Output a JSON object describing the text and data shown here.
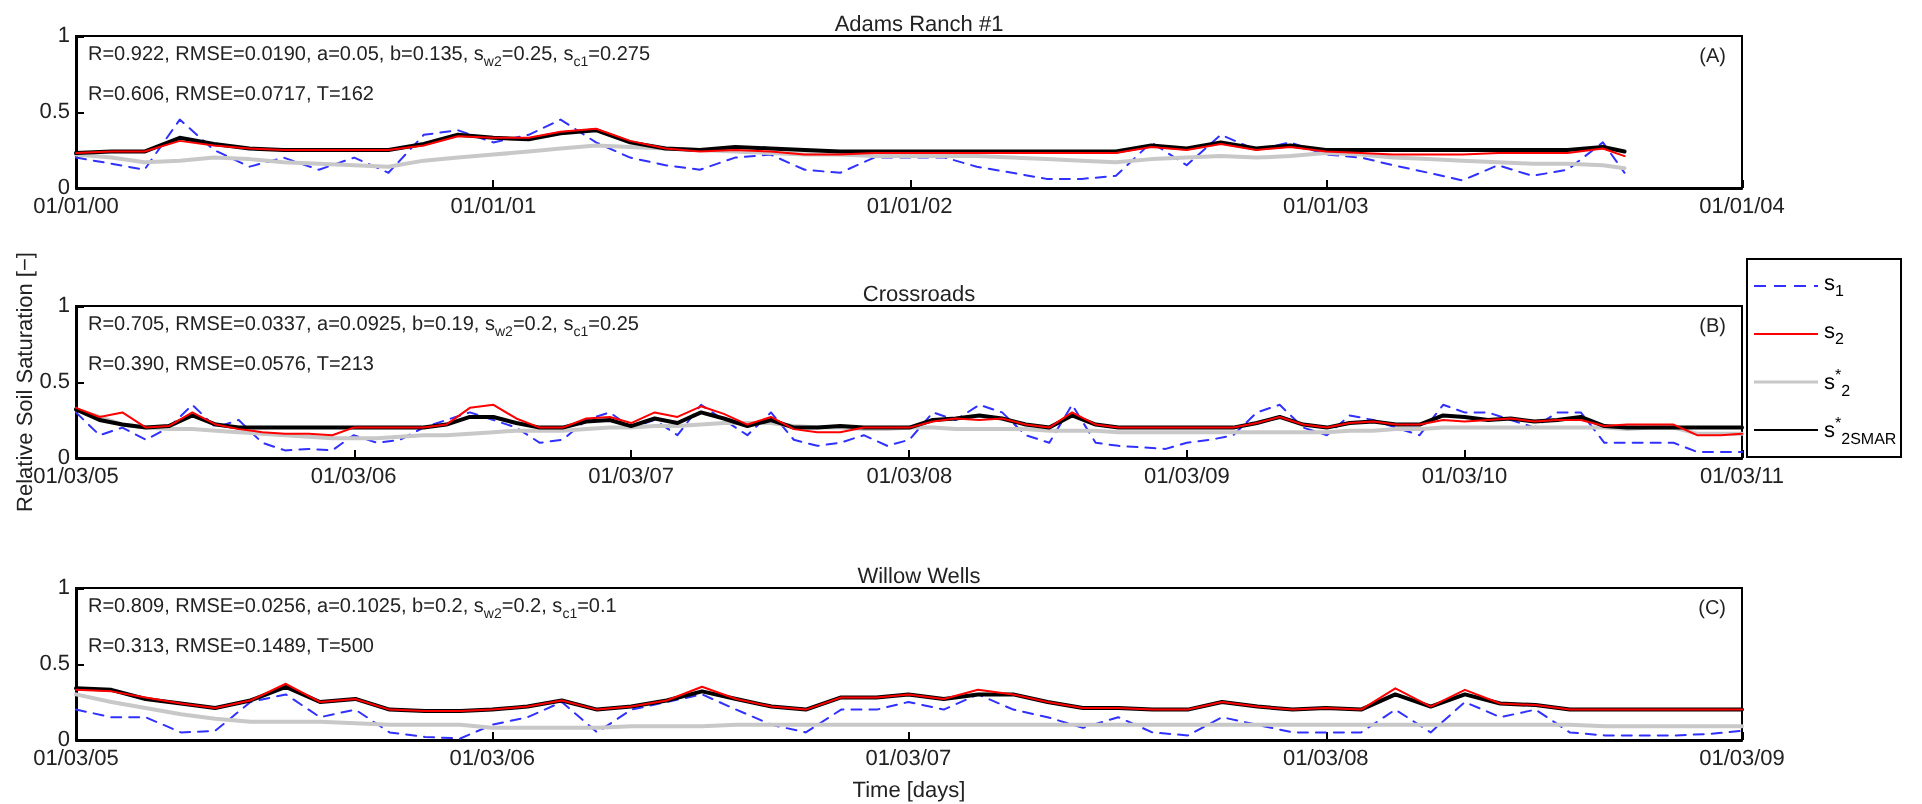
{
  "chart_data": [
    {
      "type": "line",
      "title": "Adams Ranch #1",
      "annotations": [
        "R=0.922, RMSE=0.0190, a=0.05, b=0.135, s$_{w2}$=0.25, s$_{c1}$=0.275",
        "R=0.606, RMSE=0.0717, T=162",
        "(A)"
      ],
      "x": [
        "2000-01",
        "2000-02",
        "2000-03",
        "2000-04",
        "2000-05",
        "2000-06",
        "2000-07",
        "2000-08",
        "2000-09",
        "2000-10",
        "2000-11",
        "2000-12",
        "2001-01",
        "2001-02",
        "2001-03",
        "2001-04",
        "2001-05",
        "2001-06",
        "2001-07",
        "2001-08",
        "2001-09",
        "2001-10",
        "2001-11",
        "2001-12",
        "2002-01",
        "2002-02",
        "2002-03",
        "2002-04",
        "2002-05",
        "2002-06",
        "2002-07",
        "2002-08",
        "2002-09",
        "2002-10",
        "2002-11",
        "2002-12",
        "2003-01",
        "2003-02",
        "2003-03",
        "2003-04",
        "2003-05",
        "2003-06",
        "2003-07",
        "2003-08",
        "2003-09",
        "2003-09-20"
      ],
      "series": [
        {
          "color": "#3030ff",
          "line_style": "dashed",
          "values": [
            0.2,
            0.16,
            0.12,
            0.45,
            0.25,
            0.14,
            0.2,
            0.12,
            0.2,
            0.1,
            0.35,
            0.38,
            0.3,
            0.35,
            0.45,
            0.3,
            0.2,
            0.15,
            0.12,
            0.2,
            0.22,
            0.12,
            0.1,
            0.2,
            0.2,
            0.2,
            0.14,
            0.1,
            0.06,
            0.06,
            0.08,
            0.3,
            0.15,
            0.35,
            0.25,
            0.3,
            0.22,
            0.2,
            0.15,
            0.1,
            0.05,
            0.15,
            0.08,
            0.12,
            0.3,
            0.1
          ]
        },
        {
          "color": "#ff0000",
          "values": [
            0.23,
            0.24,
            0.24,
            0.31,
            0.28,
            0.26,
            0.25,
            0.25,
            0.25,
            0.25,
            0.28,
            0.34,
            0.33,
            0.33,
            0.37,
            0.39,
            0.31,
            0.26,
            0.24,
            0.25,
            0.24,
            0.22,
            0.22,
            0.23,
            0.23,
            0.23,
            0.23,
            0.23,
            0.23,
            0.23,
            0.23,
            0.27,
            0.25,
            0.29,
            0.25,
            0.27,
            0.24,
            0.23,
            0.22,
            0.22,
            0.22,
            0.23,
            0.23,
            0.23,
            0.26,
            0.21
          ]
        },
        {
          "color": "#c8c8c8",
          "values": [
            0.22,
            0.2,
            0.17,
            0.18,
            0.2,
            0.19,
            0.17,
            0.16,
            0.15,
            0.14,
            0.18,
            0.2,
            0.22,
            0.24,
            0.26,
            0.28,
            0.27,
            0.26,
            0.25,
            0.24,
            0.23,
            0.22,
            0.22,
            0.21,
            0.21,
            0.21,
            0.21,
            0.2,
            0.19,
            0.18,
            0.17,
            0.19,
            0.2,
            0.21,
            0.2,
            0.21,
            0.23,
            0.22,
            0.2,
            0.19,
            0.18,
            0.17,
            0.16,
            0.16,
            0.15,
            0.13
          ]
        },
        {
          "color": "#000000",
          "values": [
            0.23,
            0.24,
            0.24,
            0.33,
            0.29,
            0.26,
            0.25,
            0.25,
            0.25,
            0.25,
            0.29,
            0.35,
            0.33,
            0.32,
            0.36,
            0.38,
            0.3,
            0.26,
            0.25,
            0.27,
            0.26,
            0.25,
            0.24,
            0.24,
            0.24,
            0.24,
            0.24,
            0.24,
            0.24,
            0.24,
            0.24,
            0.28,
            0.26,
            0.3,
            0.26,
            0.28,
            0.25,
            0.25,
            0.25,
            0.25,
            0.25,
            0.25,
            0.25,
            0.25,
            0.27,
            0.24
          ]
        }
      ],
      "xlim": [
        "2000-01-01",
        "2004-01-01"
      ],
      "xticks": [
        {
          "value": "2000-01-01",
          "label": "01/01/00"
        },
        {
          "value": "2001-01-01",
          "label": "01/01/01"
        },
        {
          "value": "2002-01-01",
          "label": "01/01/02"
        },
        {
          "value": "2003-01-01",
          "label": "01/01/03"
        },
        {
          "value": "2004-01-01",
          "label": "01/01/04"
        }
      ],
      "ylim": [
        0,
        1
      ],
      "yticks": [
        0,
        0.5,
        1
      ],
      "grid": false,
      "legend": false
    },
    {
      "type": "line",
      "title": "Crossroads",
      "ylabel": "Relative Soil Saturation [−]",
      "annotations": [
        "R=0.705, RMSE=0.0337, a=0.0925, b=0.19, s$_{w2}$=0.2, s$_{c1}$=0.25",
        "R=0.390, RMSE=0.0576, T=213",
        "(B)"
      ],
      "x": [
        "2005-03",
        "2005-04",
        "2005-05",
        "2005-06",
        "2005-07",
        "2005-08",
        "2005-09",
        "2005-10",
        "2005-11",
        "2005-12",
        "2006-01",
        "2006-02",
        "2006-03",
        "2006-04",
        "2006-05",
        "2006-06",
        "2006-07",
        "2006-08",
        "2006-09",
        "2006-10",
        "2006-11",
        "2006-12",
        "2007-01",
        "2007-02",
        "2007-03",
        "2007-04",
        "2007-05",
        "2007-06",
        "2007-07",
        "2007-08",
        "2007-09",
        "2007-10",
        "2007-11",
        "2007-12",
        "2008-01",
        "2008-02",
        "2008-03",
        "2008-04",
        "2008-05",
        "2008-06",
        "2008-07",
        "2008-08",
        "2008-09",
        "2008-10",
        "2008-11",
        "2008-12",
        "2009-01",
        "2009-02",
        "2009-03",
        "2009-04",
        "2009-05",
        "2009-06",
        "2009-07",
        "2009-08",
        "2009-09",
        "2009-10",
        "2009-11",
        "2009-12",
        "2010-01",
        "2010-02",
        "2010-03",
        "2010-04",
        "2010-05",
        "2010-06",
        "2010-07",
        "2010-08",
        "2010-09",
        "2010-10",
        "2010-11",
        "2010-12",
        "2011-01",
        "2011-02",
        "2011-03"
      ],
      "series": [
        {
          "name": "s$_{1}$",
          "color": "#3030ff",
          "line_style": "dashed",
          "values": [
            0.3,
            0.15,
            0.2,
            0.12,
            0.2,
            0.35,
            0.2,
            0.25,
            0.1,
            0.05,
            0.06,
            0.05,
            0.15,
            0.1,
            0.12,
            0.2,
            0.25,
            0.3,
            0.25,
            0.2,
            0.1,
            0.12,
            0.25,
            0.3,
            0.2,
            0.25,
            0.15,
            0.35,
            0.25,
            0.15,
            0.3,
            0.12,
            0.08,
            0.1,
            0.15,
            0.08,
            0.12,
            0.3,
            0.25,
            0.35,
            0.3,
            0.15,
            0.1,
            0.35,
            0.1,
            0.08,
            0.07,
            0.06,
            0.1,
            0.12,
            0.15,
            0.3,
            0.35,
            0.2,
            0.15,
            0.28,
            0.25,
            0.2,
            0.15,
            0.35,
            0.3,
            0.3,
            0.25,
            0.2,
            0.3,
            0.3,
            0.1,
            0.1,
            0.1,
            0.1,
            0.04,
            0.04,
            0.04
          ]
        },
        {
          "name": "s$_{2}$",
          "color": "#ff0000",
          "values": [
            0.33,
            0.27,
            0.3,
            0.2,
            0.21,
            0.3,
            0.22,
            0.19,
            0.17,
            0.16,
            0.16,
            0.15,
            0.2,
            0.2,
            0.2,
            0.2,
            0.22,
            0.33,
            0.35,
            0.26,
            0.2,
            0.2,
            0.26,
            0.27,
            0.23,
            0.3,
            0.27,
            0.34,
            0.29,
            0.22,
            0.27,
            0.19,
            0.17,
            0.17,
            0.2,
            0.2,
            0.2,
            0.24,
            0.26,
            0.25,
            0.26,
            0.22,
            0.2,
            0.3,
            0.22,
            0.2,
            0.2,
            0.2,
            0.2,
            0.2,
            0.2,
            0.23,
            0.27,
            0.22,
            0.2,
            0.23,
            0.24,
            0.22,
            0.22,
            0.25,
            0.24,
            0.25,
            0.26,
            0.24,
            0.25,
            0.25,
            0.21,
            0.22,
            0.22,
            0.22,
            0.15,
            0.15,
            0.16
          ]
        },
        {
          "name": "s$^{*}$$_{2}$",
          "color": "#c8c8c8",
          "values": [
            0.32,
            0.27,
            0.22,
            0.2,
            0.19,
            0.19,
            0.18,
            0.17,
            0.16,
            0.15,
            0.14,
            0.13,
            0.13,
            0.13,
            0.14,
            0.15,
            0.15,
            0.16,
            0.17,
            0.18,
            0.18,
            0.18,
            0.19,
            0.2,
            0.2,
            0.21,
            0.21,
            0.22,
            0.23,
            0.23,
            0.23,
            0.21,
            0.2,
            0.2,
            0.19,
            0.19,
            0.2,
            0.2,
            0.19,
            0.19,
            0.19,
            0.19,
            0.18,
            0.18,
            0.18,
            0.17,
            0.17,
            0.17,
            0.17,
            0.17,
            0.17,
            0.17,
            0.17,
            0.17,
            0.17,
            0.18,
            0.18,
            0.19,
            0.19,
            0.2,
            0.2,
            0.2,
            0.2,
            0.2,
            0.2,
            0.2,
            0.2,
            0.19,
            0.2,
            0.2,
            0.16,
            0.16,
            0.16
          ]
        },
        {
          "name": "s$^{*}$$_{2SMAR}$",
          "color": "#000000",
          "values": [
            0.32,
            0.25,
            0.22,
            0.2,
            0.21,
            0.28,
            0.22,
            0.2,
            0.2,
            0.2,
            0.2,
            0.2,
            0.2,
            0.2,
            0.2,
            0.2,
            0.22,
            0.27,
            0.27,
            0.23,
            0.2,
            0.2,
            0.24,
            0.25,
            0.21,
            0.26,
            0.23,
            0.3,
            0.26,
            0.21,
            0.25,
            0.2,
            0.2,
            0.21,
            0.2,
            0.2,
            0.2,
            0.25,
            0.26,
            0.28,
            0.26,
            0.22,
            0.2,
            0.28,
            0.22,
            0.2,
            0.2,
            0.2,
            0.2,
            0.2,
            0.2,
            0.23,
            0.27,
            0.22,
            0.2,
            0.23,
            0.24,
            0.22,
            0.22,
            0.28,
            0.27,
            0.25,
            0.26,
            0.24,
            0.25,
            0.27,
            0.21,
            0.2,
            0.2,
            0.2,
            0.2,
            0.2,
            0.2
          ]
        }
      ],
      "xlim": [
        "2005-03-01",
        "2011-03-01"
      ],
      "xticks": [
        {
          "value": "2005-03-01",
          "label": "01/03/05"
        },
        {
          "value": "2006-03-01",
          "label": "01/03/06"
        },
        {
          "value": "2007-03-01",
          "label": "01/03/07"
        },
        {
          "value": "2008-03-01",
          "label": "01/03/08"
        },
        {
          "value": "2009-03-01",
          "label": "01/03/09"
        },
        {
          "value": "2010-03-01",
          "label": "01/03/10"
        },
        {
          "value": "2011-03-01",
          "label": "01/03/11"
        }
      ],
      "ylim": [
        0,
        1
      ],
      "yticks": [
        0,
        0.5,
        1
      ],
      "grid": false,
      "legend": "right"
    },
    {
      "type": "line",
      "title": "Willow Wells",
      "xlabel": "Time [days]",
      "annotations": [
        "R=0.809, RMSE=0.0256, a=0.1025, b=0.2, s$_{w2}$=0.2, s$_{c1}$=0.1",
        "R=0.313, RMSE=0.1489, T=500",
        "(C)"
      ],
      "x": [
        "2005-03",
        "2005-04",
        "2005-05",
        "2005-06",
        "2005-07",
        "2005-08",
        "2005-09",
        "2005-10",
        "2005-11",
        "2005-12",
        "2006-01",
        "2006-02",
        "2006-03",
        "2006-04",
        "2006-05",
        "2006-06",
        "2006-07",
        "2006-08",
        "2006-09",
        "2006-10",
        "2006-11",
        "2006-12",
        "2007-01",
        "2007-02",
        "2007-03",
        "2007-04",
        "2007-05",
        "2007-06",
        "2007-07",
        "2007-08",
        "2007-09",
        "2007-10",
        "2007-11",
        "2007-12",
        "2008-01",
        "2008-02",
        "2008-03",
        "2008-04",
        "2008-05",
        "2008-06",
        "2008-07",
        "2008-08",
        "2008-09",
        "2008-10",
        "2008-11",
        "2008-12",
        "2009-01",
        "2009-02",
        "2009-03"
      ],
      "series": [
        {
          "color": "#3030ff",
          "line_style": "dashed",
          "values": [
            0.2,
            0.15,
            0.15,
            0.05,
            0.06,
            0.25,
            0.3,
            0.15,
            0.2,
            0.05,
            0.02,
            0.01,
            0.1,
            0.15,
            0.25,
            0.05,
            0.2,
            0.25,
            0.3,
            0.2,
            0.1,
            0.05,
            0.2,
            0.2,
            0.25,
            0.2,
            0.3,
            0.2,
            0.15,
            0.08,
            0.15,
            0.05,
            0.03,
            0.15,
            0.1,
            0.05,
            0.05,
            0.05,
            0.2,
            0.05,
            0.25,
            0.15,
            0.2,
            0.05,
            0.03,
            0.03,
            0.03,
            0.04,
            0.06
          ]
        },
        {
          "color": "#ff0000",
          "values": [
            0.33,
            0.32,
            0.28,
            0.24,
            0.21,
            0.26,
            0.37,
            0.25,
            0.27,
            0.2,
            0.19,
            0.19,
            0.2,
            0.22,
            0.26,
            0.2,
            0.22,
            0.26,
            0.35,
            0.27,
            0.22,
            0.2,
            0.28,
            0.28,
            0.3,
            0.27,
            0.33,
            0.3,
            0.25,
            0.21,
            0.21,
            0.2,
            0.2,
            0.25,
            0.22,
            0.2,
            0.21,
            0.2,
            0.34,
            0.22,
            0.33,
            0.24,
            0.23,
            0.2,
            0.2,
            0.2,
            0.2,
            0.2,
            0.2
          ]
        },
        {
          "color": "#c8c8c8",
          "values": [
            0.3,
            0.25,
            0.21,
            0.17,
            0.14,
            0.12,
            0.12,
            0.12,
            0.11,
            0.1,
            0.1,
            0.1,
            0.08,
            0.08,
            0.08,
            0.08,
            0.09,
            0.09,
            0.09,
            0.1,
            0.1,
            0.1,
            0.1,
            0.1,
            0.1,
            0.1,
            0.1,
            0.1,
            0.1,
            0.1,
            0.1,
            0.1,
            0.1,
            0.1,
            0.1,
            0.1,
            0.1,
            0.1,
            0.1,
            0.1,
            0.1,
            0.1,
            0.1,
            0.1,
            0.09,
            0.09,
            0.09,
            0.09,
            0.09
          ]
        },
        {
          "color": "#000000",
          "values": [
            0.34,
            0.33,
            0.27,
            0.24,
            0.21,
            0.26,
            0.35,
            0.25,
            0.27,
            0.2,
            0.19,
            0.19,
            0.2,
            0.22,
            0.26,
            0.2,
            0.22,
            0.26,
            0.32,
            0.27,
            0.22,
            0.2,
            0.28,
            0.28,
            0.3,
            0.27,
            0.3,
            0.3,
            0.25,
            0.21,
            0.21,
            0.2,
            0.2,
            0.25,
            0.22,
            0.2,
            0.21,
            0.2,
            0.3,
            0.22,
            0.3,
            0.24,
            0.23,
            0.2,
            0.2,
            0.2,
            0.2,
            0.2,
            0.2
          ]
        }
      ],
      "xlim": [
        "2005-03-01",
        "2009-03-01"
      ],
      "xticks": [
        {
          "value": "2005-03-01",
          "label": "01/03/05"
        },
        {
          "value": "2006-03-01",
          "label": "01/03/06"
        },
        {
          "value": "2007-03-01",
          "label": "01/03/07"
        },
        {
          "value": "2008-03-01",
          "label": "01/03/08"
        },
        {
          "value": "2009-03-01",
          "label": "01/03/09"
        }
      ],
      "ylim": [
        0,
        1
      ],
      "yticks": [
        0,
        0.5,
        1
      ],
      "grid": false,
      "legend": false
    }
  ]
}
